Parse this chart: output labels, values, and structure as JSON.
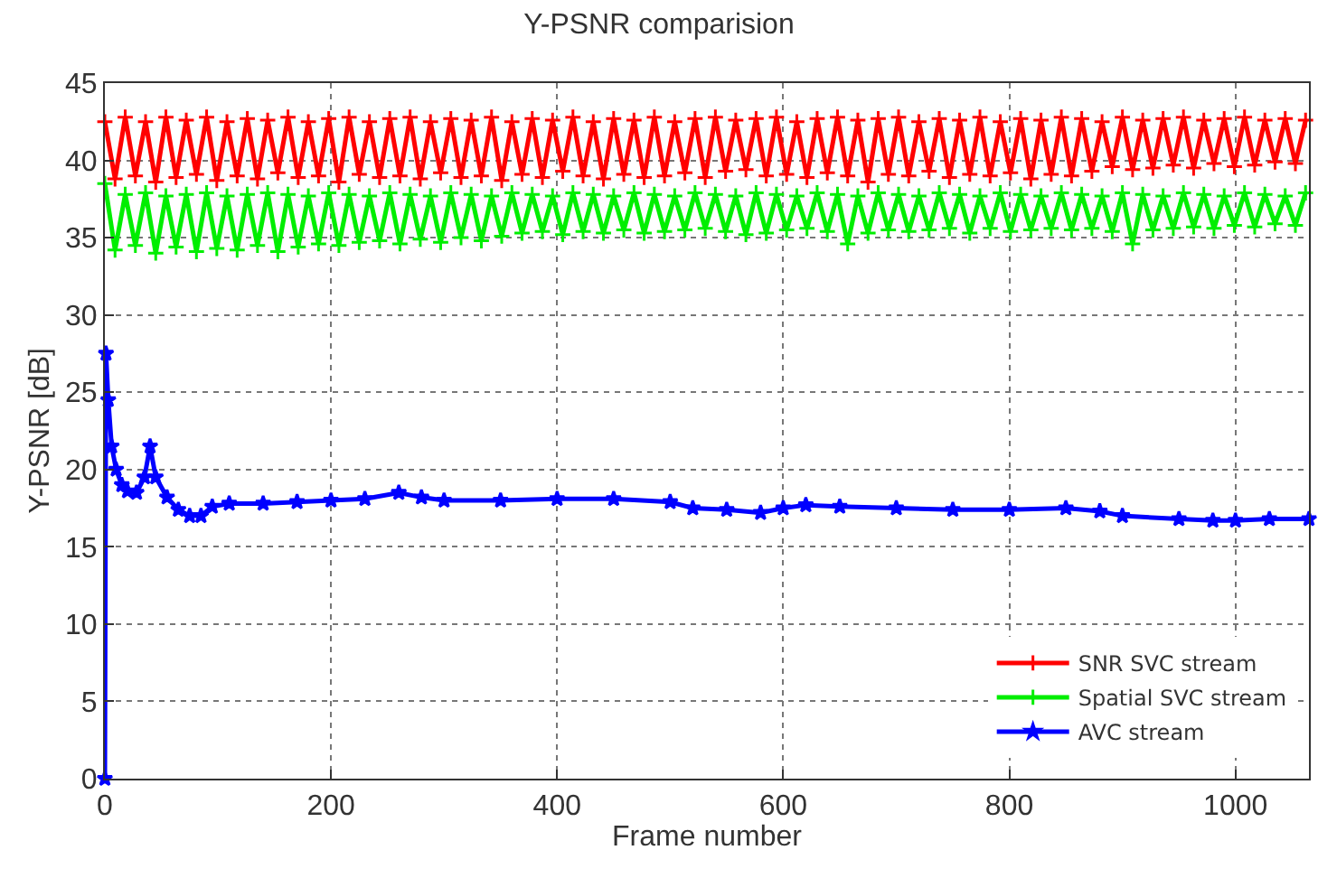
{
  "chart_data": {
    "type": "line",
    "title": "Y-PSNR comparision",
    "xlabel": "Frame number",
    "ylabel": "Y-PSNR [dB]",
    "xlim": [
      0,
      1065
    ],
    "xticks": [
      0,
      200,
      400,
      600,
      800,
      1000
    ],
    "ylim": [
      0,
      45
    ],
    "yticks": [
      0,
      5,
      10,
      15,
      20,
      25,
      30,
      35,
      40,
      45
    ],
    "grid": true,
    "legend": "bottom right",
    "series": [
      {
        "name": "SNR SVC stream",
        "color": "#ff0000",
        "marker": "cross",
        "x": [
          0,
          9,
          18,
          27,
          36,
          45,
          54,
          63,
          72,
          81,
          90,
          99,
          108,
          117,
          126,
          135,
          144,
          153,
          162,
          171,
          180,
          189,
          198,
          207,
          216,
          225,
          234,
          243,
          252,
          261,
          270,
          279,
          288,
          297,
          306,
          315,
          324,
          333,
          342,
          351,
          360,
          369,
          378,
          387,
          396,
          405,
          414,
          423,
          432,
          441,
          450,
          459,
          468,
          477,
          486,
          495,
          504,
          513,
          522,
          531,
          540,
          549,
          558,
          567,
          576,
          585,
          594,
          603,
          612,
          621,
          630,
          639,
          648,
          657,
          666,
          675,
          684,
          693,
          702,
          711,
          720,
          729,
          738,
          747,
          756,
          765,
          774,
          783,
          792,
          801,
          810,
          819,
          828,
          837,
          846,
          855,
          864,
          873,
          882,
          891,
          900,
          909,
          918,
          927,
          936,
          945,
          954,
          963,
          972,
          981,
          990,
          999,
          1008,
          1017,
          1026,
          1035,
          1044,
          1053,
          1062
        ],
        "values": [
          42.5,
          38.8,
          42.8,
          39.0,
          42.5,
          38.6,
          42.8,
          38.9,
          42.6,
          39.1,
          42.8,
          38.7,
          42.5,
          39.0,
          42.7,
          38.8,
          42.6,
          39.2,
          42.8,
          38.9,
          42.5,
          39.0,
          42.7,
          38.6,
          42.8,
          39.1,
          42.5,
          38.9,
          42.7,
          39.0,
          42.8,
          38.8,
          42.5,
          39.2,
          42.7,
          38.9,
          42.6,
          39.0,
          42.8,
          38.7,
          42.5,
          39.1,
          42.7,
          38.9,
          42.6,
          39.3,
          42.8,
          39.0,
          42.5,
          38.8,
          42.7,
          39.1,
          42.6,
          38.9,
          42.8,
          39.0,
          42.5,
          39.2,
          42.7,
          38.9,
          42.8,
          39.3,
          42.6,
          39.4,
          42.7,
          39.0,
          42.8,
          39.1,
          42.5,
          38.9,
          42.7,
          39.2,
          42.8,
          39.0,
          42.6,
          38.6,
          42.7,
          39.1,
          42.8,
          39.0,
          42.5,
          39.3,
          42.7,
          38.9,
          42.6,
          39.1,
          42.8,
          39.0,
          42.5,
          39.2,
          42.7,
          38.8,
          42.6,
          39.1,
          42.8,
          39.0,
          42.7,
          39.3,
          42.5,
          39.6,
          42.8,
          39.4,
          42.6,
          39.5,
          42.7,
          39.7,
          42.8,
          39.5,
          42.6,
          39.8,
          42.7,
          39.6,
          42.8,
          39.7,
          42.6,
          39.9,
          42.7,
          39.8,
          42.6
        ]
      },
      {
        "name": "Spatial SVC stream",
        "color": "#00ee00",
        "marker": "cross",
        "x": [
          0,
          9,
          18,
          27,
          36,
          45,
          54,
          63,
          72,
          81,
          90,
          99,
          108,
          117,
          126,
          135,
          144,
          153,
          162,
          171,
          180,
          189,
          198,
          207,
          216,
          225,
          234,
          243,
          252,
          261,
          270,
          279,
          288,
          297,
          306,
          315,
          324,
          333,
          342,
          351,
          360,
          369,
          378,
          387,
          396,
          405,
          414,
          423,
          432,
          441,
          450,
          459,
          468,
          477,
          486,
          495,
          504,
          513,
          522,
          531,
          540,
          549,
          558,
          567,
          576,
          585,
          594,
          603,
          612,
          621,
          630,
          639,
          648,
          657,
          666,
          675,
          684,
          693,
          702,
          711,
          720,
          729,
          738,
          747,
          756,
          765,
          774,
          783,
          792,
          801,
          810,
          819,
          828,
          837,
          846,
          855,
          864,
          873,
          882,
          891,
          900,
          909,
          918,
          927,
          936,
          945,
          954,
          963,
          972,
          981,
          990,
          999,
          1008,
          1017,
          1026,
          1035,
          1044,
          1053,
          1062
        ],
        "values": [
          38.5,
          34.2,
          37.8,
          34.5,
          37.9,
          34.0,
          37.7,
          34.4,
          37.8,
          34.1,
          37.9,
          34.3,
          37.7,
          34.2,
          37.8,
          34.5,
          37.9,
          34.1,
          37.8,
          34.4,
          37.7,
          34.6,
          37.9,
          34.5,
          37.8,
          34.7,
          37.7,
          34.8,
          37.9,
          34.6,
          37.8,
          34.9,
          37.7,
          34.7,
          37.9,
          35.0,
          37.8,
          34.8,
          37.7,
          35.1,
          37.9,
          35.3,
          37.8,
          35.4,
          37.7,
          35.2,
          37.9,
          35.4,
          37.8,
          35.3,
          37.7,
          35.5,
          37.9,
          35.3,
          37.8,
          35.4,
          37.7,
          35.5,
          37.9,
          35.6,
          37.8,
          35.4,
          37.7,
          35.2,
          37.9,
          35.3,
          37.8,
          35.5,
          37.7,
          35.6,
          37.9,
          35.4,
          37.8,
          34.6,
          37.7,
          35.3,
          37.9,
          35.5,
          37.8,
          35.4,
          37.7,
          35.5,
          37.9,
          35.6,
          37.8,
          35.3,
          37.7,
          35.6,
          37.9,
          35.4,
          37.8,
          35.5,
          37.7,
          35.6,
          37.9,
          35.5,
          37.8,
          35.6,
          37.7,
          35.4,
          37.9,
          34.6,
          37.8,
          35.5,
          37.7,
          35.6,
          37.9,
          35.7,
          37.8,
          35.6,
          37.7,
          35.8,
          37.9,
          35.7,
          37.8,
          35.9,
          37.7,
          35.8,
          37.9
        ]
      },
      {
        "name": "AVC stream",
        "color": "#0000ff",
        "marker": "star",
        "x": [
          0,
          1,
          3,
          6,
          10,
          15,
          20,
          28,
          35,
          40,
          45,
          55,
          65,
          75,
          85,
          95,
          110,
          140,
          170,
          200,
          230,
          260,
          280,
          300,
          350,
          400,
          450,
          500,
          520,
          550,
          580,
          600,
          620,
          650,
          700,
          750,
          800,
          850,
          880,
          900,
          950,
          980,
          1000,
          1030,
          1065
        ],
        "values": [
          0,
          27.5,
          24.5,
          21.5,
          20.0,
          19.0,
          18.6,
          18.5,
          19.5,
          21.5,
          19.5,
          18.2,
          17.4,
          17.0,
          17.0,
          17.6,
          17.8,
          17.8,
          17.9,
          18.0,
          18.1,
          18.5,
          18.2,
          18.0,
          18.0,
          18.1,
          18.1,
          17.9,
          17.5,
          17.4,
          17.2,
          17.5,
          17.7,
          17.6,
          17.5,
          17.4,
          17.4,
          17.5,
          17.3,
          17.0,
          16.8,
          16.7,
          16.7,
          16.8,
          16.8
        ]
      }
    ]
  }
}
